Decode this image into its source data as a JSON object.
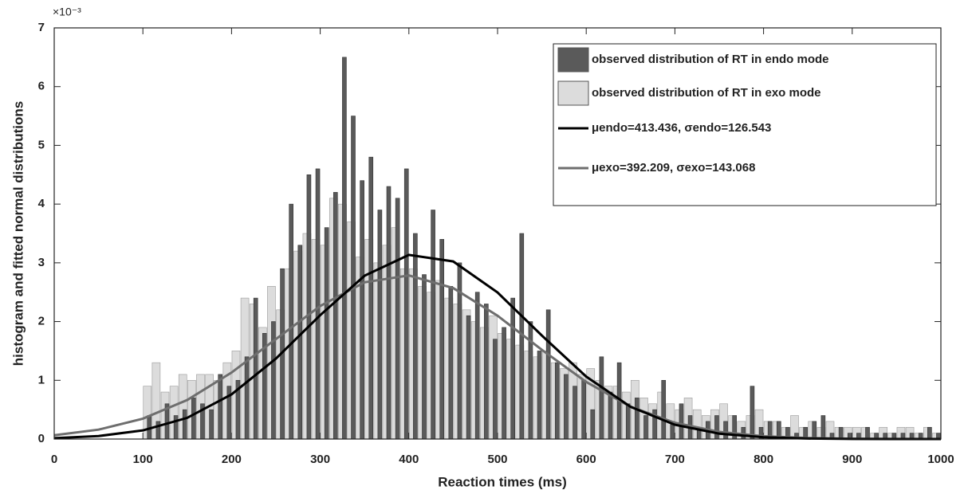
{
  "chart_data": {
    "type": "histogram",
    "xlabel": "Reaction times (ms)",
    "ylabel": "histogram and fitted normal distributions",
    "y_multiplier": "×10⁻³",
    "xlim": [
      0,
      1000
    ],
    "ylim": [
      0,
      7
    ],
    "xticks": [
      0,
      100,
      200,
      300,
      400,
      500,
      600,
      700,
      800,
      900,
      1000
    ],
    "yticks": [
      0,
      1,
      2,
      3,
      4,
      5,
      6,
      7
    ],
    "legend": "upper right",
    "bins": [
      100,
      110,
      120,
      130,
      140,
      150,
      160,
      170,
      180,
      190,
      200,
      210,
      220,
      230,
      240,
      250,
      260,
      270,
      280,
      290,
      300,
      310,
      320,
      330,
      340,
      350,
      360,
      370,
      380,
      390,
      400,
      410,
      420,
      430,
      440,
      450,
      460,
      470,
      480,
      490,
      500,
      510,
      520,
      530,
      540,
      550,
      560,
      570,
      580,
      590,
      600,
      610,
      620,
      630,
      640,
      650,
      660,
      670,
      680,
      690,
      700,
      710,
      720,
      730,
      740,
      750,
      760,
      770,
      780,
      790,
      800,
      810,
      820,
      830,
      840,
      850,
      860,
      870,
      880,
      890,
      900,
      910,
      920,
      930,
      940,
      950,
      960,
      970,
      980,
      990,
      1000
    ],
    "series": [
      {
        "name": "observed distribution of RT in endo mode",
        "color": "#5a5a5a",
        "values": [
          0.4,
          0.3,
          0.6,
          0.4,
          0.5,
          0.7,
          0.6,
          0.5,
          1.1,
          0.9,
          1.0,
          1.4,
          2.4,
          1.8,
          2.0,
          2.9,
          4.0,
          3.3,
          4.5,
          4.6,
          3.6,
          4.2,
          6.5,
          5.5,
          4.4,
          4.8,
          3.9,
          4.3,
          4.1,
          4.6,
          3.5,
          2.8,
          3.9,
          3.4,
          2.6,
          3.0,
          2.1,
          2.5,
          2.3,
          1.7,
          1.9,
          2.4,
          3.5,
          2.0,
          1.5,
          2.2,
          1.3,
          1.1,
          0.9,
          1.0,
          0.5,
          1.4,
          0.8,
          1.3,
          0.6,
          0.7,
          0.4,
          0.5,
          1.0,
          0.3,
          0.6,
          0.4,
          0.2,
          0.3,
          0.4,
          0.3,
          0.4,
          0.2,
          0.9,
          0.2,
          0.3,
          0.3,
          0.2,
          0.1,
          0.2,
          0.3,
          0.4,
          0.1,
          0.2,
          0.1,
          0.1,
          0.2,
          0.1,
          0.1,
          0.1,
          0.1,
          0.1,
          0.1,
          0.2,
          0.1
        ]
      },
      {
        "name": "observed distribution of RT in exo mode",
        "color": "#dcdcdc",
        "values": [
          0.9,
          1.3,
          0.8,
          0.9,
          1.1,
          1.0,
          1.1,
          1.1,
          1.0,
          1.3,
          1.5,
          2.4,
          2.3,
          1.9,
          2.6,
          2.2,
          2.9,
          3.2,
          3.5,
          3.4,
          3.3,
          4.1,
          4.0,
          3.7,
          3.1,
          3.4,
          3.0,
          3.3,
          3.6,
          2.9,
          2.9,
          2.6,
          2.5,
          2.7,
          2.4,
          2.3,
          2.2,
          2.0,
          1.9,
          2.1,
          1.8,
          1.7,
          1.6,
          1.5,
          1.4,
          1.5,
          1.3,
          1.2,
          1.3,
          1.1,
          1.2,
          1.0,
          0.9,
          0.9,
          0.8,
          1.0,
          0.7,
          0.6,
          0.8,
          0.6,
          0.5,
          0.7,
          0.5,
          0.4,
          0.5,
          0.6,
          0.4,
          0.3,
          0.4,
          0.5,
          0.3,
          0.3,
          0.2,
          0.4,
          0.2,
          0.3,
          0.2,
          0.3,
          0.2,
          0.2,
          0.2,
          0.2,
          0.1,
          0.2,
          0.1,
          0.2,
          0.2,
          0.1,
          0.2,
          0.1
        ]
      }
    ],
    "line_x": [
      0,
      50,
      100,
      150,
      200,
      250,
      300,
      350,
      400,
      450,
      500,
      550,
      600,
      650,
      700,
      750,
      800,
      850,
      900,
      950,
      1000
    ],
    "lines": [
      {
        "name": "μendo=413.436, σendo=126.543",
        "color": "#000000",
        "values": [
          0.015,
          0.051,
          0.147,
          0.361,
          0.76,
          1.369,
          2.109,
          2.78,
          3.135,
          3.024,
          2.495,
          1.762,
          1.063,
          0.549,
          0.243,
          0.092,
          0.03,
          0.008,
          0.002,
          0.0005,
          0.0001
        ]
      },
      {
        "name": "μexo=392.209, σexo=143.068",
        "color": "#6e6e6e",
        "values": [
          0.065,
          0.16,
          0.347,
          0.665,
          1.132,
          1.701,
          2.265,
          2.669,
          2.785,
          2.57,
          2.1,
          1.518,
          0.972,
          0.55,
          0.276,
          0.122,
          0.048,
          0.017,
          0.005,
          0.0014,
          0.0003
        ]
      }
    ]
  }
}
